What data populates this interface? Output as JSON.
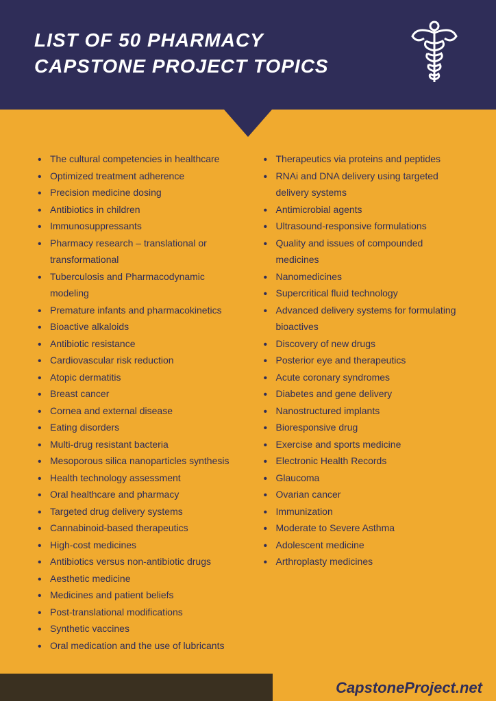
{
  "header": {
    "title": "LIST OF 50 PHARMACY CAPSTONE PROJECT TOPICS"
  },
  "colors": {
    "header_bg": "#2f2d58",
    "body_bg": "#f0aa2f",
    "title_text": "#ffffff",
    "list_text": "#2f2d58",
    "footer_dark": "#3a3020"
  },
  "left": [
    "The cultural competencies in healthcare",
    "Optimized treatment adherence",
    "Precision medicine dosing",
    "Antibiotics in children",
    "Immunosuppressants",
    "Pharmacy research – translational or transformational",
    "Tuberculosis and Pharmacodynamic modeling",
    "Premature infants and pharmacokinetics",
    "Bioactive alkaloids",
    "Antibiotic resistance",
    "Cardiovascular risk reduction",
    "Atopic dermatitis",
    "Breast cancer",
    "Cornea and external disease",
    "Eating disorders",
    "Multi-drug resistant bacteria",
    "Mesoporous silica nanoparticles synthesis",
    "Health technology assessment",
    "Oral healthcare and pharmacy",
    "Targeted drug delivery systems",
    "Cannabinoid-based therapeutics",
    "High-cost medicines",
    "Antibiotics versus non-antibiotic drugs",
    "Aesthetic medicine",
    "Medicines and patient beliefs",
    "Post-translational modifications",
    "Synthetic vaccines",
    "Oral medication and the use of lubricants"
  ],
  "right": [
    "Therapeutics via proteins and peptides",
    "RNAi and DNA delivery using targeted delivery systems",
    "Antimicrobial agents",
    "Ultrasound-responsive formulations",
    "Quality and issues of compounded medicines",
    "Nanomedicines",
    "Supercritical fluid technology",
    "Advanced delivery systems for formulating bioactives",
    "Discovery of new drugs",
    "Posterior eye and therapeutics",
    "Acute coronary syndromes",
    "Diabetes and gene delivery",
    "Nanostructured implants",
    "Bioresponsive drug",
    "Exercise and sports medicine",
    "Electronic Health Records",
    "Glaucoma",
    "Ovarian cancer",
    "Immunization",
    "Moderate to Severe Asthma",
    "Adolescent medicine",
    "Arthroplasty medicines"
  ],
  "footer": {
    "site": "CapstoneProject.net"
  }
}
